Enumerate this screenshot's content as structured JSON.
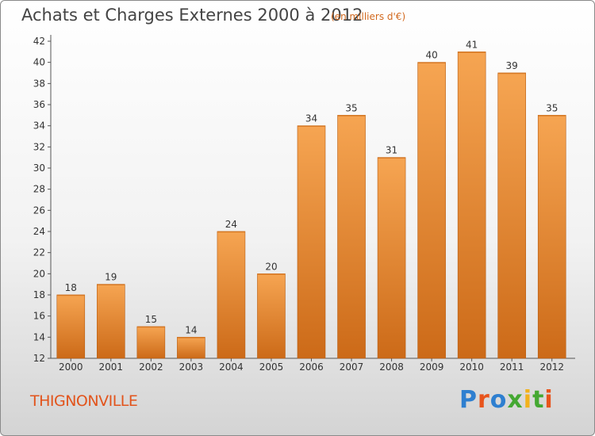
{
  "header": {
    "title": "Achats et Charges Externes 2000 à 2012",
    "subtitle": "(en milliers d'€)"
  },
  "footer": {
    "town": "THIGNONVILLE",
    "logo_text": "Proxiti",
    "logo_colors": [
      "#2e7fd0",
      "#e8541c",
      "#2e7fd0",
      "#44a832",
      "#f2b21c",
      "#44a832",
      "#e8541c"
    ]
  },
  "colors": {
    "bar_top": "#f6a552",
    "bar_bottom": "#cc6a18",
    "axis": "#555555",
    "grid": "#d8d8d8"
  },
  "chart_data": {
    "type": "bar",
    "title": "Achats et Charges Externes 2000 à 2012",
    "ylabel": "en milliers d'€",
    "xlabel": "",
    "categories": [
      "2000",
      "2001",
      "2002",
      "2003",
      "2004",
      "2005",
      "2006",
      "2007",
      "2008",
      "2009",
      "2010",
      "2011",
      "2012"
    ],
    "values": [
      18,
      19,
      15,
      14,
      24,
      20,
      34,
      35,
      31,
      40,
      41,
      39,
      35
    ],
    "ylim": [
      12,
      42
    ],
    "yticks": [
      12,
      14,
      16,
      18,
      20,
      22,
      24,
      26,
      28,
      30,
      32,
      34,
      36,
      38,
      40,
      42
    ],
    "grid": false,
    "legend": "none"
  }
}
